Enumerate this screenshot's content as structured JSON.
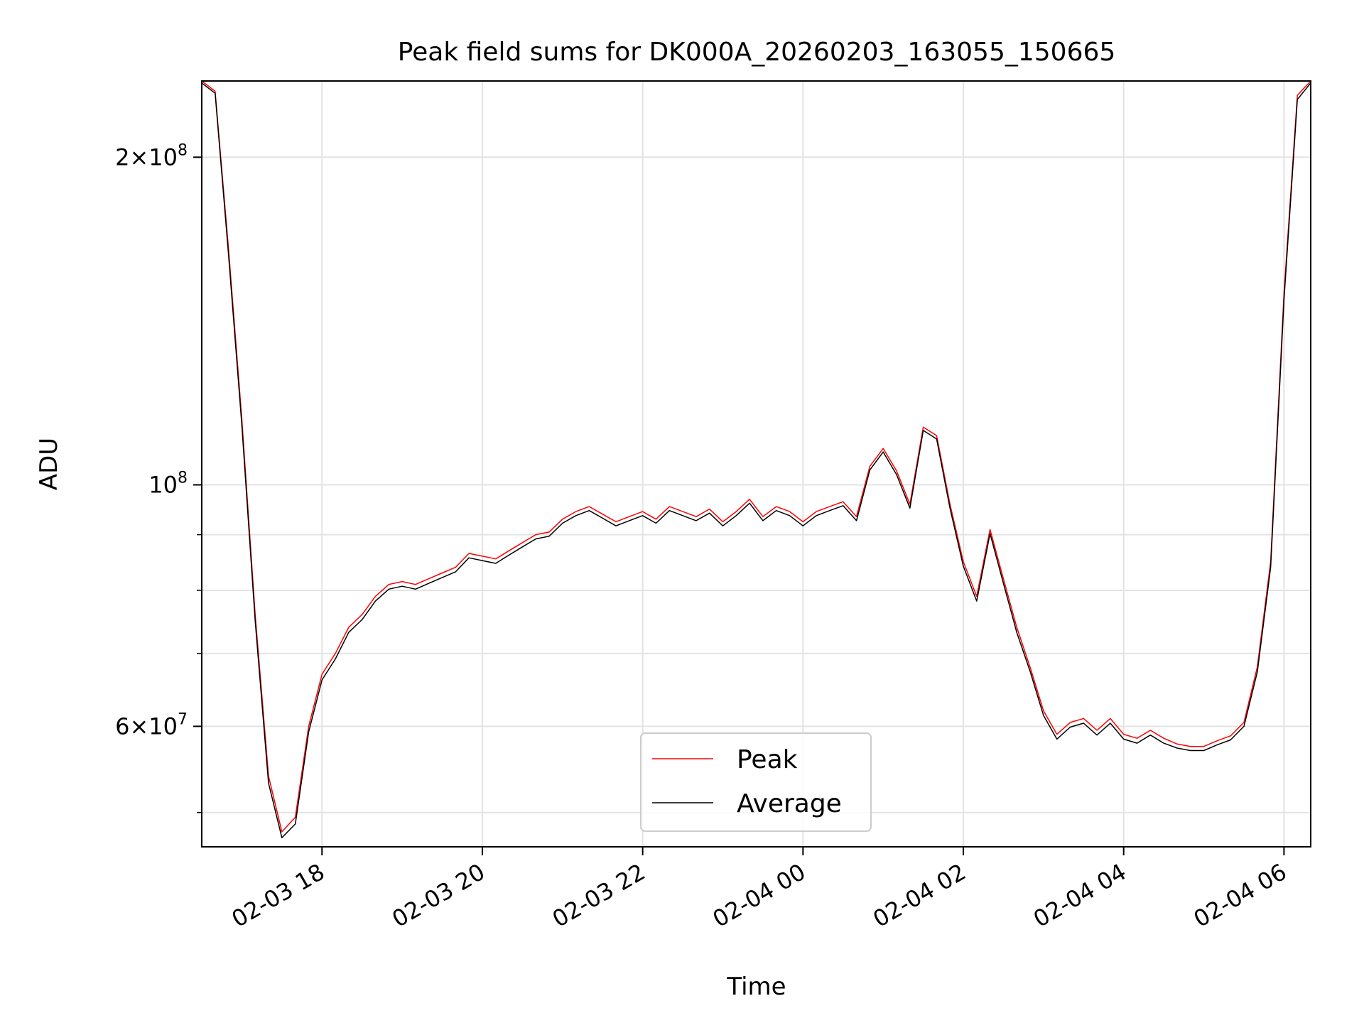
{
  "chart_data": {
    "type": "line",
    "title": "Peak field sums for DK000A_20260203_163055_150665",
    "xlabel": "Time",
    "ylabel": "ADU",
    "yscale": "log",
    "xlim": [
      "2026-02-03T16:30",
      "2026-02-04T06:20"
    ],
    "ylim": [
      46500000,
      235000000
    ],
    "grid": true,
    "legend": {
      "placement": "lower center",
      "entries": [
        "Peak",
        "Average"
      ]
    },
    "x_ticks": [
      {
        "label": "02-03 18",
        "x": "2026-02-03T18:00"
      },
      {
        "label": "02-03 20",
        "x": "2026-02-03T20:00"
      },
      {
        "label": "02-03 22",
        "x": "2026-02-03T22:00"
      },
      {
        "label": "02-04 00",
        "x": "2026-02-04T00:00"
      },
      {
        "label": "02-04 02",
        "x": "2026-02-04T02:00"
      },
      {
        "label": "02-04 04",
        "x": "2026-02-04T04:00"
      },
      {
        "label": "02-04 06",
        "x": "2026-02-04T06:00"
      }
    ],
    "y_ticks": [
      {
        "base": "2",
        "exp": "8",
        "value": 200000000
      },
      {
        "base": "",
        "exp": "8",
        "value": 100000000
      },
      {
        "base": "6",
        "exp": "7",
        "value": 60000000
      }
    ],
    "y_minor_ticks": [
      50000000,
      70000000,
      80000000,
      90000000
    ],
    "x": [
      "2026-02-03T16:30",
      "2026-02-03T16:40",
      "2026-02-03T16:50",
      "2026-02-03T17:00",
      "2026-02-03T17:10",
      "2026-02-03T17:20",
      "2026-02-03T17:30",
      "2026-02-03T17:40",
      "2026-02-03T17:50",
      "2026-02-03T18:00",
      "2026-02-03T18:10",
      "2026-02-03T18:20",
      "2026-02-03T18:30",
      "2026-02-03T18:40",
      "2026-02-03T18:50",
      "2026-02-03T19:00",
      "2026-02-03T19:10",
      "2026-02-03T19:20",
      "2026-02-03T19:30",
      "2026-02-03T19:40",
      "2026-02-03T19:50",
      "2026-02-03T20:00",
      "2026-02-03T20:10",
      "2026-02-03T20:20",
      "2026-02-03T20:30",
      "2026-02-03T20:40",
      "2026-02-03T20:50",
      "2026-02-03T21:00",
      "2026-02-03T21:10",
      "2026-02-03T21:20",
      "2026-02-03T21:30",
      "2026-02-03T21:40",
      "2026-02-03T21:50",
      "2026-02-03T22:00",
      "2026-02-03T22:10",
      "2026-02-03T22:20",
      "2026-02-03T22:30",
      "2026-02-03T22:40",
      "2026-02-03T22:50",
      "2026-02-03T23:00",
      "2026-02-03T23:10",
      "2026-02-03T23:20",
      "2026-02-03T23:30",
      "2026-02-03T23:40",
      "2026-02-03T23:50",
      "2026-02-04T00:00",
      "2026-02-04T00:10",
      "2026-02-04T00:20",
      "2026-02-04T00:30",
      "2026-02-04T00:40",
      "2026-02-04T00:50",
      "2026-02-04T01:00",
      "2026-02-04T01:10",
      "2026-02-04T01:20",
      "2026-02-04T01:30",
      "2026-02-04T01:40",
      "2026-02-04T01:50",
      "2026-02-04T02:00",
      "2026-02-04T02:10",
      "2026-02-04T02:20",
      "2026-02-04T02:30",
      "2026-02-04T02:40",
      "2026-02-04T02:50",
      "2026-02-04T03:00",
      "2026-02-04T03:10",
      "2026-02-04T03:20",
      "2026-02-04T03:30",
      "2026-02-04T03:40",
      "2026-02-04T03:50",
      "2026-02-04T04:00",
      "2026-02-04T04:10",
      "2026-02-04T04:20",
      "2026-02-04T04:30",
      "2026-02-04T04:40",
      "2026-02-04T04:50",
      "2026-02-04T05:00",
      "2026-02-04T05:10",
      "2026-02-04T05:20",
      "2026-02-04T05:30",
      "2026-02-04T05:40",
      "2026-02-04T05:50",
      "2026-02-04T06:00",
      "2026-02-04T06:10",
      "2026-02-04T06:20"
    ],
    "series": [
      {
        "name": "Peak",
        "color": "#ff0000",
        "values": [
          235000000,
          230000000,
          165000000,
          115000000,
          76000000,
          54000000,
          48000000,
          49500000,
          60000000,
          67000000,
          70000000,
          74000000,
          76000000,
          79000000,
          81000000,
          81500000,
          81000000,
          82000000,
          83000000,
          84000000,
          86500000,
          86000000,
          85500000,
          87000000,
          88500000,
          90000000,
          90500000,
          93000000,
          94500000,
          95500000,
          94000000,
          92500000,
          93500000,
          94500000,
          93000000,
          95500000,
          94500000,
          93500000,
          95000000,
          92500000,
          94500000,
          97000000,
          93500000,
          95500000,
          94500000,
          92500000,
          94500000,
          95500000,
          96500000,
          93500000,
          104000000,
          108000000,
          103000000,
          96000000,
          113000000,
          111000000,
          96000000,
          85000000,
          79000000,
          91000000,
          82000000,
          74000000,
          68000000,
          62000000,
          59000000,
          60500000,
          61000000,
          59500000,
          61000000,
          59000000,
          58500000,
          59500000,
          58500000,
          57800000,
          57500000,
          57500000,
          58200000,
          58800000,
          60500000,
          68000000,
          85000000,
          150000000,
          228000000,
          235000000
        ]
      },
      {
        "name": "Average",
        "color": "#000000",
        "values": [
          234000000,
          229000000,
          163000000,
          113500000,
          75000000,
          53200000,
          47400000,
          48800000,
          59300000,
          66200000,
          69200000,
          73200000,
          75200000,
          78200000,
          80200000,
          80700000,
          80200000,
          81200000,
          82200000,
          83200000,
          85700000,
          85200000,
          84700000,
          86200000,
          87700000,
          89200000,
          89700000,
          92200000,
          93700000,
          94700000,
          93200000,
          91700000,
          92700000,
          93700000,
          92200000,
          94700000,
          93700000,
          92700000,
          94200000,
          91700000,
          93700000,
          96200000,
          92700000,
          94700000,
          93700000,
          91700000,
          93700000,
          94700000,
          95700000,
          92700000,
          103200000,
          107200000,
          102200000,
          95200000,
          112200000,
          110200000,
          95200000,
          84200000,
          78200000,
          90200000,
          81200000,
          73200000,
          67400000,
          61400000,
          58400000,
          59900000,
          60400000,
          58900000,
          60400000,
          58400000,
          57900000,
          58900000,
          57900000,
          57300000,
          57000000,
          57000000,
          57700000,
          58300000,
          60000000,
          67300000,
          84000000,
          148000000,
          226000000,
          234000000
        ]
      }
    ]
  }
}
